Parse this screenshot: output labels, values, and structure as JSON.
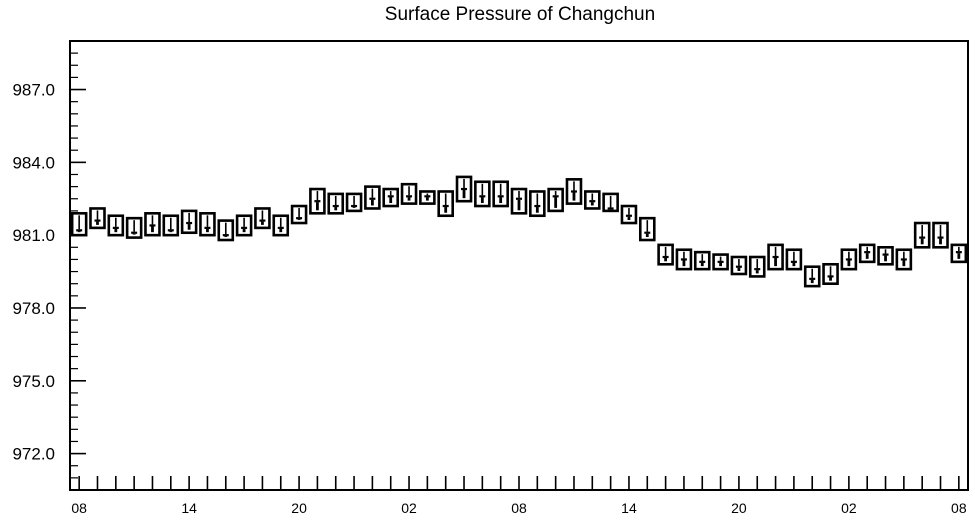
{
  "chart_data": {
    "type": "box",
    "title": "Surface Pressure of Changchun",
    "xlabel": "",
    "ylabel": "",
    "ylim": [
      970.5,
      989.0
    ],
    "y_ticks": [
      972.0,
      975.0,
      978.0,
      981.0,
      984.0,
      987.0
    ],
    "y_tick_labels": [
      "972.0",
      "975.0",
      "978.0",
      "981.0",
      "984.0",
      "987.0"
    ],
    "x_tick_labels": [
      "08",
      "14",
      "20",
      "02",
      "08",
      "14",
      "20",
      "02",
      "08"
    ],
    "x_label_hours": [
      0,
      6,
      12,
      18,
      24,
      30,
      36,
      42,
      48
    ],
    "x_range_hours": [
      -0.5,
      48.5
    ],
    "grid": false,
    "legend": "none",
    "series": [
      {
        "hours": [
          0,
          1,
          2,
          3,
          4,
          5,
          6,
          7,
          8,
          9,
          10,
          11,
          12,
          13,
          14,
          15,
          16,
          17,
          18,
          19,
          20,
          21,
          22,
          23,
          24,
          25,
          26,
          27,
          28,
          29,
          30,
          31,
          32,
          33,
          34,
          35,
          36,
          37,
          38,
          39,
          40,
          41,
          42,
          43,
          44,
          45,
          46,
          47,
          48
        ],
        "box_low": [
          981.0,
          981.3,
          981.0,
          980.9,
          981.0,
          981.0,
          981.1,
          981.0,
          980.8,
          981.0,
          981.3,
          981.0,
          981.5,
          981.9,
          981.9,
          982.0,
          982.1,
          982.2,
          982.3,
          982.3,
          981.8,
          982.4,
          982.2,
          982.2,
          981.9,
          981.8,
          982.0,
          982.3,
          982.1,
          982.0,
          981.5,
          980.8,
          979.8,
          979.6,
          979.6,
          979.6,
          979.4,
          979.3,
          979.6,
          979.6,
          978.9,
          979.0,
          979.6,
          979.9,
          979.8,
          979.6,
          980.5,
          980.5,
          979.9
        ],
        "box_high": [
          981.9,
          982.1,
          981.8,
          981.7,
          981.9,
          981.8,
          982.0,
          981.9,
          981.6,
          981.8,
          982.1,
          981.8,
          982.2,
          982.9,
          982.7,
          982.7,
          983.0,
          982.9,
          983.1,
          982.8,
          982.8,
          983.4,
          983.2,
          983.2,
          982.9,
          982.8,
          982.9,
          983.3,
          982.8,
          982.7,
          982.2,
          981.7,
          980.6,
          980.4,
          980.3,
          980.2,
          980.1,
          980.1,
          980.6,
          980.4,
          979.7,
          979.8,
          980.4,
          980.6,
          980.5,
          980.4,
          981.5,
          981.5,
          980.6
        ],
        "median": [
          981.2,
          981.6,
          981.3,
          981.1,
          981.4,
          981.2,
          981.5,
          981.3,
          981.0,
          981.3,
          981.6,
          981.3,
          981.7,
          982.4,
          982.2,
          982.2,
          982.5,
          982.6,
          982.6,
          982.6,
          982.2,
          982.9,
          982.6,
          982.6,
          982.5,
          982.2,
          982.6,
          982.8,
          982.4,
          982.1,
          981.8,
          981.1,
          980.1,
          980.0,
          979.9,
          979.9,
          979.7,
          979.6,
          980.1,
          979.9,
          979.2,
          979.3,
          980.0,
          980.3,
          980.2,
          980.0,
          980.9,
          980.9,
          980.3
        ]
      }
    ]
  }
}
